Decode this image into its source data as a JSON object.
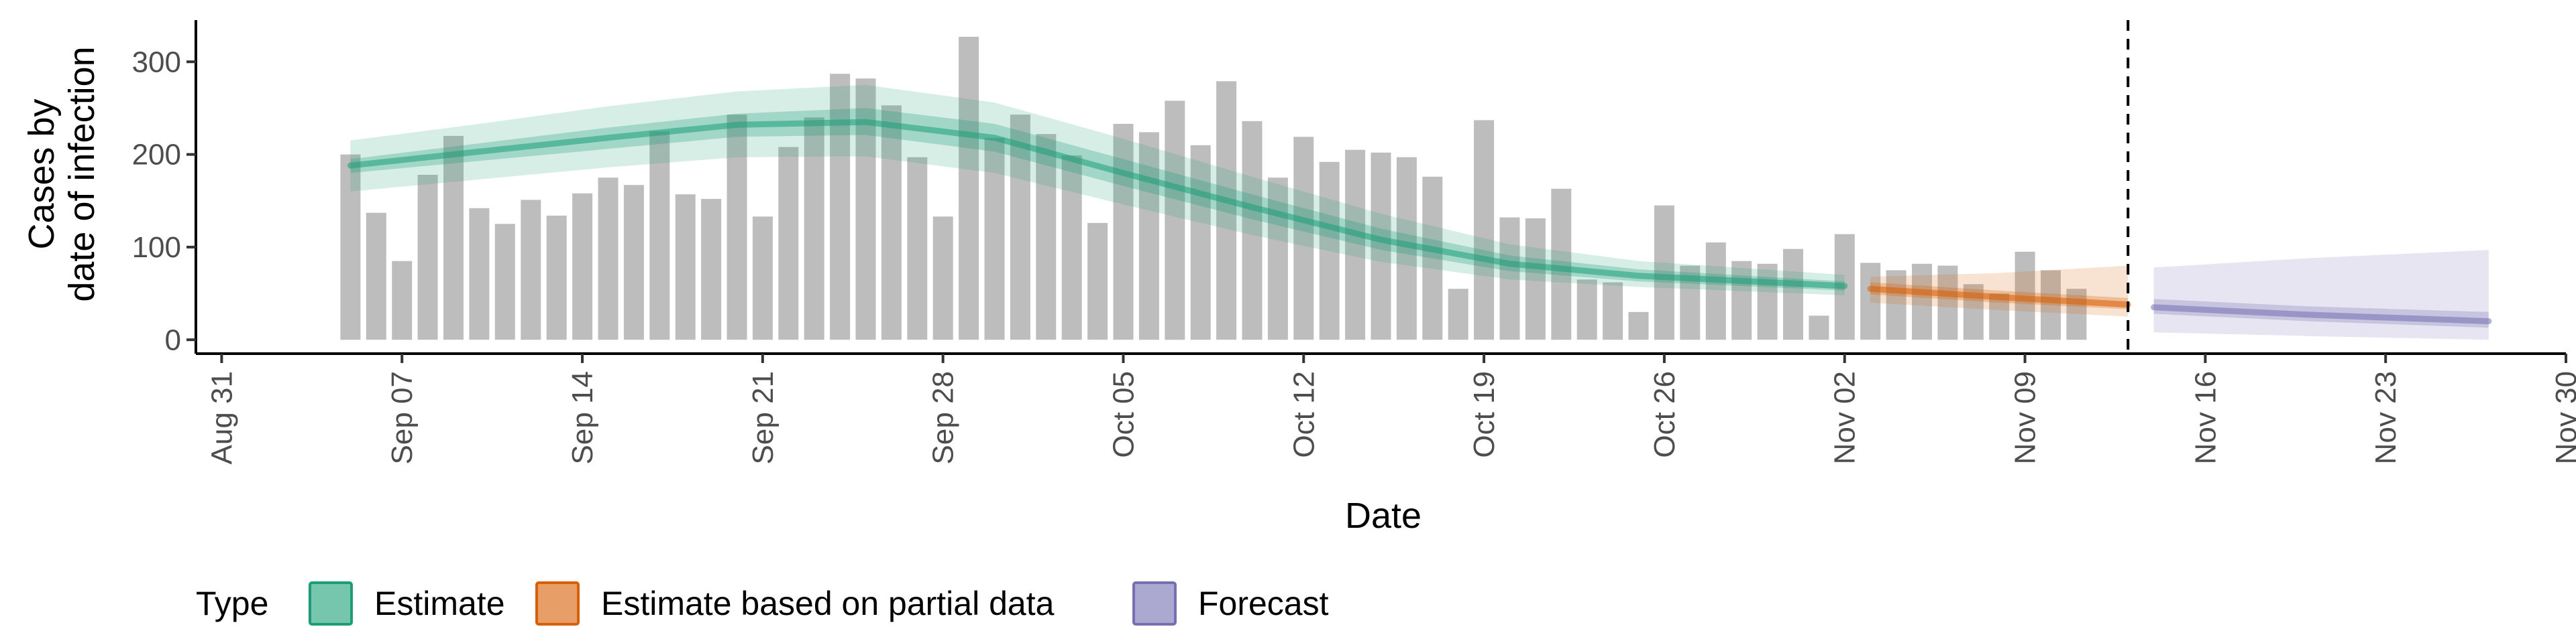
{
  "chart_data": {
    "type": "bar",
    "xlabel": "Date",
    "ylabel_lines": [
      "Cases by",
      "date of infection"
    ],
    "ylim": [
      -15,
      345
    ],
    "yticks": [
      0,
      100,
      200,
      300
    ],
    "xlim": [
      "2020-08-30",
      "2020-11-30"
    ],
    "xticks": [
      {
        "date": "2020-08-31",
        "label": "Aug 31"
      },
      {
        "date": "2020-09-07",
        "label": "Sep 07"
      },
      {
        "date": "2020-09-14",
        "label": "Sep 14"
      },
      {
        "date": "2020-09-21",
        "label": "Sep 21"
      },
      {
        "date": "2020-09-28",
        "label": "Sep 28"
      },
      {
        "date": "2020-10-05",
        "label": "Oct 05"
      },
      {
        "date": "2020-10-12",
        "label": "Oct 12"
      },
      {
        "date": "2020-10-19",
        "label": "Oct 19"
      },
      {
        "date": "2020-10-26",
        "label": "Oct 26"
      },
      {
        "date": "2020-11-02",
        "label": "Nov 02"
      },
      {
        "date": "2020-11-09",
        "label": "Nov 09"
      },
      {
        "date": "2020-11-16",
        "label": "Nov 16"
      },
      {
        "date": "2020-11-23",
        "label": "Nov 23"
      },
      {
        "date": "2020-11-30",
        "label": "Nov 30"
      }
    ],
    "bars": {
      "start_date": "2020-09-05",
      "color": "#bdbdbd",
      "values": [
        200,
        137,
        85,
        178,
        220,
        142,
        125,
        151,
        134,
        158,
        175,
        167,
        225,
        157,
        152,
        243,
        133,
        208,
        240,
        287,
        282,
        253,
        197,
        133,
        327,
        218,
        243,
        222,
        199,
        126,
        233,
        224,
        258,
        210,
        279,
        236,
        175,
        219,
        192,
        205,
        202,
        197,
        176,
        55,
        237,
        132,
        131,
        163,
        65,
        62,
        30,
        145,
        80,
        105,
        85,
        82,
        98,
        26,
        114,
        83,
        75,
        82,
        80,
        60,
        50,
        95,
        75,
        55
      ]
    },
    "vline_date": "2020-11-13",
    "series": [
      {
        "name": "Estimate",
        "color": "#1b9e77",
        "dates": [
          "2020-09-05",
          "2020-09-10",
          "2020-09-15",
          "2020-09-20",
          "2020-09-25",
          "2020-09-30",
          "2020-10-05",
          "2020-10-10",
          "2020-10-15",
          "2020-10-20",
          "2020-10-25",
          "2020-11-02"
        ],
        "median": [
          188,
          203,
          218,
          232,
          235,
          218,
          180,
          143,
          108,
          82,
          69,
          58
        ],
        "lower50": [
          180,
          193,
          206,
          219,
          221,
          203,
          166,
          130,
          97,
          74,
          63,
          53
        ],
        "upper50": [
          195,
          212,
          229,
          244,
          250,
          233,
          195,
          157,
          120,
          91,
          76,
          63
        ],
        "lower90": [
          160,
          173,
          186,
          197,
          198,
          180,
          146,
          113,
          84,
          65,
          57,
          48
        ],
        "upper90": [
          215,
          233,
          252,
          268,
          275,
          256,
          217,
          176,
          136,
          103,
          85,
          70
        ]
      },
      {
        "name": "Estimate based on partial data",
        "color": "#d95f02",
        "dates": [
          "2020-11-03",
          "2020-11-08",
          "2020-11-13"
        ],
        "median": [
          55,
          46,
          38
        ],
        "lower50": [
          49,
          40,
          33
        ],
        "upper50": [
          62,
          53,
          45
        ],
        "lower90": [
          40,
          32,
          25
        ],
        "upper90": [
          68,
          72,
          80
        ]
      },
      {
        "name": "Forecast",
        "color": "#7570b3",
        "dates": [
          "2020-11-14",
          "2020-11-20",
          "2020-11-27"
        ],
        "median": [
          35,
          27,
          20
        ],
        "lower50": [
          28,
          20,
          13
        ],
        "upper50": [
          44,
          36,
          30
        ],
        "lower90": [
          8,
          4,
          0
        ],
        "upper90": [
          78,
          88,
          97
        ]
      }
    ],
    "legend": {
      "placement": "bottom-left",
      "title": "Type",
      "items": [
        "Estimate",
        "Estimate based on partial data",
        "Forecast"
      ]
    }
  }
}
